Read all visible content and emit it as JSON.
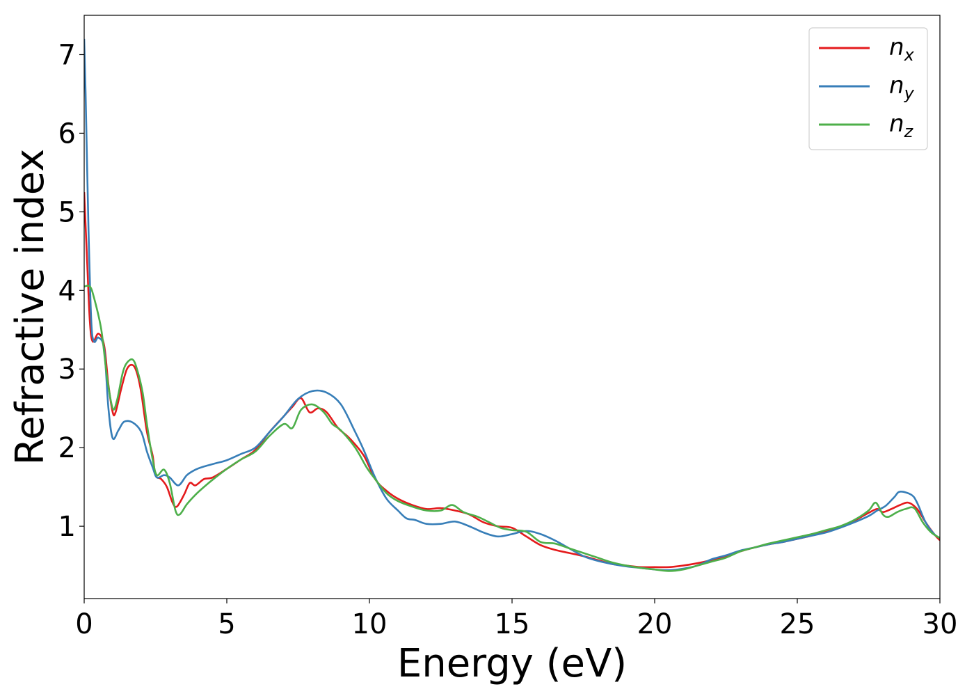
{
  "chart_data": {
    "type": "line",
    "title": "",
    "xlabel": "Energy (eV)",
    "ylabel": "Refractive index",
    "xlim": [
      0,
      30
    ],
    "ylim": [
      0.08,
      7.5
    ],
    "xticks": [
      0,
      5,
      10,
      15,
      20,
      25,
      30
    ],
    "yticks": [
      1,
      2,
      3,
      4,
      5,
      6,
      7
    ],
    "grid": false,
    "legend_position": "top-right",
    "series": [
      {
        "name": "n",
        "subscript": "x",
        "color": "#e41a1c",
        "points": [
          [
            0,
            5.25
          ],
          [
            0.1,
            4.4
          ],
          [
            0.2,
            3.6
          ],
          [
            0.3,
            3.35
          ],
          [
            0.5,
            3.45
          ],
          [
            0.7,
            3.3
          ],
          [
            0.85,
            2.8
          ],
          [
            1.0,
            2.45
          ],
          [
            1.1,
            2.45
          ],
          [
            1.3,
            2.75
          ],
          [
            1.5,
            3.0
          ],
          [
            1.7,
            3.05
          ],
          [
            1.85,
            2.95
          ],
          [
            2.0,
            2.7
          ],
          [
            2.2,
            2.2
          ],
          [
            2.4,
            1.9
          ],
          [
            2.5,
            1.65
          ],
          [
            2.7,
            1.6
          ],
          [
            2.9,
            1.5
          ],
          [
            3.1,
            1.3
          ],
          [
            3.25,
            1.25
          ],
          [
            3.5,
            1.4
          ],
          [
            3.7,
            1.55
          ],
          [
            3.9,
            1.52
          ],
          [
            4.2,
            1.6
          ],
          [
            4.5,
            1.62
          ],
          [
            5.0,
            1.73
          ],
          [
            5.5,
            1.85
          ],
          [
            6.0,
            1.97
          ],
          [
            6.5,
            2.2
          ],
          [
            7.0,
            2.4
          ],
          [
            7.3,
            2.52
          ],
          [
            7.6,
            2.63
          ],
          [
            7.9,
            2.45
          ],
          [
            8.2,
            2.5
          ],
          [
            8.5,
            2.45
          ],
          [
            8.9,
            2.25
          ],
          [
            9.3,
            2.12
          ],
          [
            9.8,
            1.9
          ],
          [
            10.2,
            1.6
          ],
          [
            10.6,
            1.45
          ],
          [
            11.0,
            1.35
          ],
          [
            11.5,
            1.27
          ],
          [
            12.0,
            1.22
          ],
          [
            12.5,
            1.23
          ],
          [
            13.0,
            1.2
          ],
          [
            13.5,
            1.15
          ],
          [
            14.0,
            1.05
          ],
          [
            14.5,
            1.0
          ],
          [
            15.0,
            0.98
          ],
          [
            15.5,
            0.87
          ],
          [
            16.0,
            0.76
          ],
          [
            16.5,
            0.7
          ],
          [
            17.0,
            0.66
          ],
          [
            17.5,
            0.62
          ],
          [
            18.0,
            0.57
          ],
          [
            18.5,
            0.52
          ],
          [
            19.0,
            0.5
          ],
          [
            19.5,
            0.48
          ],
          [
            20.0,
            0.48
          ],
          [
            20.5,
            0.48
          ],
          [
            21.0,
            0.5
          ],
          [
            21.5,
            0.53
          ],
          [
            22.0,
            0.57
          ],
          [
            22.5,
            0.62
          ],
          [
            23.0,
            0.68
          ],
          [
            23.5,
            0.73
          ],
          [
            24.0,
            0.77
          ],
          [
            24.5,
            0.8
          ],
          [
            25.0,
            0.84
          ],
          [
            25.5,
            0.88
          ],
          [
            26.0,
            0.93
          ],
          [
            26.5,
            0.99
          ],
          [
            27.0,
            1.07
          ],
          [
            27.5,
            1.17
          ],
          [
            27.8,
            1.22
          ],
          [
            28.0,
            1.18
          ],
          [
            28.3,
            1.22
          ],
          [
            28.6,
            1.27
          ],
          [
            28.9,
            1.3
          ],
          [
            29.2,
            1.22
          ],
          [
            29.5,
            1.05
          ],
          [
            29.8,
            0.9
          ],
          [
            30.0,
            0.82
          ]
        ]
      },
      {
        "name": "n",
        "subscript": "y",
        "color": "#377eb8",
        "points": [
          [
            0,
            7.2
          ],
          [
            0.05,
            6.5
          ],
          [
            0.15,
            4.8
          ],
          [
            0.25,
            3.6
          ],
          [
            0.35,
            3.35
          ],
          [
            0.5,
            3.4
          ],
          [
            0.7,
            3.25
          ],
          [
            0.85,
            2.5
          ],
          [
            1.0,
            2.12
          ],
          [
            1.2,
            2.22
          ],
          [
            1.4,
            2.33
          ],
          [
            1.7,
            2.32
          ],
          [
            2.0,
            2.2
          ],
          [
            2.2,
            1.95
          ],
          [
            2.4,
            1.75
          ],
          [
            2.55,
            1.62
          ],
          [
            2.8,
            1.65
          ],
          [
            3.0,
            1.62
          ],
          [
            3.3,
            1.52
          ],
          [
            3.6,
            1.65
          ],
          [
            3.9,
            1.72
          ],
          [
            4.2,
            1.76
          ],
          [
            4.6,
            1.8
          ],
          [
            5.0,
            1.84
          ],
          [
            5.5,
            1.92
          ],
          [
            6.0,
            2.0
          ],
          [
            6.5,
            2.2
          ],
          [
            7.0,
            2.4
          ],
          [
            7.5,
            2.62
          ],
          [
            8.0,
            2.72
          ],
          [
            8.5,
            2.7
          ],
          [
            9.0,
            2.55
          ],
          [
            9.5,
            2.2
          ],
          [
            9.8,
            1.97
          ],
          [
            10.2,
            1.62
          ],
          [
            10.6,
            1.35
          ],
          [
            11.0,
            1.2
          ],
          [
            11.3,
            1.1
          ],
          [
            11.6,
            1.08
          ],
          [
            12.0,
            1.03
          ],
          [
            12.5,
            1.03
          ],
          [
            13.0,
            1.06
          ],
          [
            13.5,
            1.0
          ],
          [
            14.0,
            0.92
          ],
          [
            14.5,
            0.87
          ],
          [
            15.0,
            0.9
          ],
          [
            15.5,
            0.94
          ],
          [
            16.0,
            0.9
          ],
          [
            16.5,
            0.82
          ],
          [
            17.0,
            0.72
          ],
          [
            17.5,
            0.62
          ],
          [
            18.0,
            0.56
          ],
          [
            18.5,
            0.52
          ],
          [
            19.0,
            0.49
          ],
          [
            19.5,
            0.47
          ],
          [
            20.0,
            0.45
          ],
          [
            20.5,
            0.44
          ],
          [
            21.0,
            0.46
          ],
          [
            21.5,
            0.5
          ],
          [
            22.0,
            0.58
          ],
          [
            22.5,
            0.63
          ],
          [
            23.0,
            0.69
          ],
          [
            23.5,
            0.73
          ],
          [
            24.0,
            0.77
          ],
          [
            24.5,
            0.8
          ],
          [
            25.0,
            0.84
          ],
          [
            25.5,
            0.88
          ],
          [
            26.0,
            0.92
          ],
          [
            26.5,
            0.98
          ],
          [
            27.0,
            1.05
          ],
          [
            27.5,
            1.13
          ],
          [
            27.8,
            1.2
          ],
          [
            28.1,
            1.26
          ],
          [
            28.4,
            1.37
          ],
          [
            28.6,
            1.44
          ],
          [
            29.0,
            1.4
          ],
          [
            29.2,
            1.3
          ],
          [
            29.5,
            1.05
          ],
          [
            29.8,
            0.9
          ],
          [
            30.0,
            0.85
          ]
        ]
      },
      {
        "name": "n",
        "subscript": "z",
        "color": "#4daf4a",
        "points": [
          [
            0,
            4.05
          ],
          [
            0.2,
            4.05
          ],
          [
            0.35,
            3.9
          ],
          [
            0.6,
            3.5
          ],
          [
            0.8,
            2.9
          ],
          [
            1.0,
            2.5
          ],
          [
            1.15,
            2.6
          ],
          [
            1.35,
            2.95
          ],
          [
            1.5,
            3.08
          ],
          [
            1.7,
            3.12
          ],
          [
            1.85,
            3.0
          ],
          [
            2.05,
            2.7
          ],
          [
            2.2,
            2.3
          ],
          [
            2.4,
            1.85
          ],
          [
            2.55,
            1.65
          ],
          [
            2.8,
            1.72
          ],
          [
            3.0,
            1.55
          ],
          [
            3.2,
            1.2
          ],
          [
            3.35,
            1.15
          ],
          [
            3.6,
            1.28
          ],
          [
            3.9,
            1.4
          ],
          [
            4.2,
            1.5
          ],
          [
            4.6,
            1.62
          ],
          [
            5.0,
            1.73
          ],
          [
            5.5,
            1.85
          ],
          [
            6.0,
            1.95
          ],
          [
            6.5,
            2.15
          ],
          [
            7.0,
            2.3
          ],
          [
            7.3,
            2.25
          ],
          [
            7.6,
            2.48
          ],
          [
            8.0,
            2.55
          ],
          [
            8.4,
            2.45
          ],
          [
            8.7,
            2.3
          ],
          [
            9.0,
            2.22
          ],
          [
            9.5,
            2.0
          ],
          [
            9.9,
            1.75
          ],
          [
            10.2,
            1.6
          ],
          [
            10.6,
            1.42
          ],
          [
            11.0,
            1.32
          ],
          [
            11.5,
            1.25
          ],
          [
            12.0,
            1.2
          ],
          [
            12.5,
            1.2
          ],
          [
            12.9,
            1.27
          ],
          [
            13.3,
            1.18
          ],
          [
            13.8,
            1.12
          ],
          [
            14.2,
            1.05
          ],
          [
            14.6,
            0.98
          ],
          [
            15.0,
            0.95
          ],
          [
            15.5,
            0.93
          ],
          [
            16.0,
            0.8
          ],
          [
            16.5,
            0.78
          ],
          [
            17.0,
            0.72
          ],
          [
            17.5,
            0.66
          ],
          [
            18.0,
            0.6
          ],
          [
            18.5,
            0.54
          ],
          [
            19.0,
            0.5
          ],
          [
            19.5,
            0.47
          ],
          [
            20.0,
            0.45
          ],
          [
            20.5,
            0.43
          ],
          [
            21.0,
            0.45
          ],
          [
            21.5,
            0.5
          ],
          [
            22.0,
            0.55
          ],
          [
            22.5,
            0.6
          ],
          [
            23.0,
            0.68
          ],
          [
            23.5,
            0.73
          ],
          [
            24.0,
            0.78
          ],
          [
            24.5,
            0.82
          ],
          [
            25.0,
            0.86
          ],
          [
            25.5,
            0.9
          ],
          [
            26.0,
            0.95
          ],
          [
            26.5,
            1.0
          ],
          [
            27.0,
            1.08
          ],
          [
            27.5,
            1.2
          ],
          [
            27.75,
            1.3
          ],
          [
            28.0,
            1.15
          ],
          [
            28.2,
            1.12
          ],
          [
            28.5,
            1.18
          ],
          [
            28.8,
            1.22
          ],
          [
            29.1,
            1.23
          ],
          [
            29.4,
            1.05
          ],
          [
            29.7,
            0.92
          ],
          [
            30.0,
            0.85
          ]
        ]
      }
    ]
  }
}
